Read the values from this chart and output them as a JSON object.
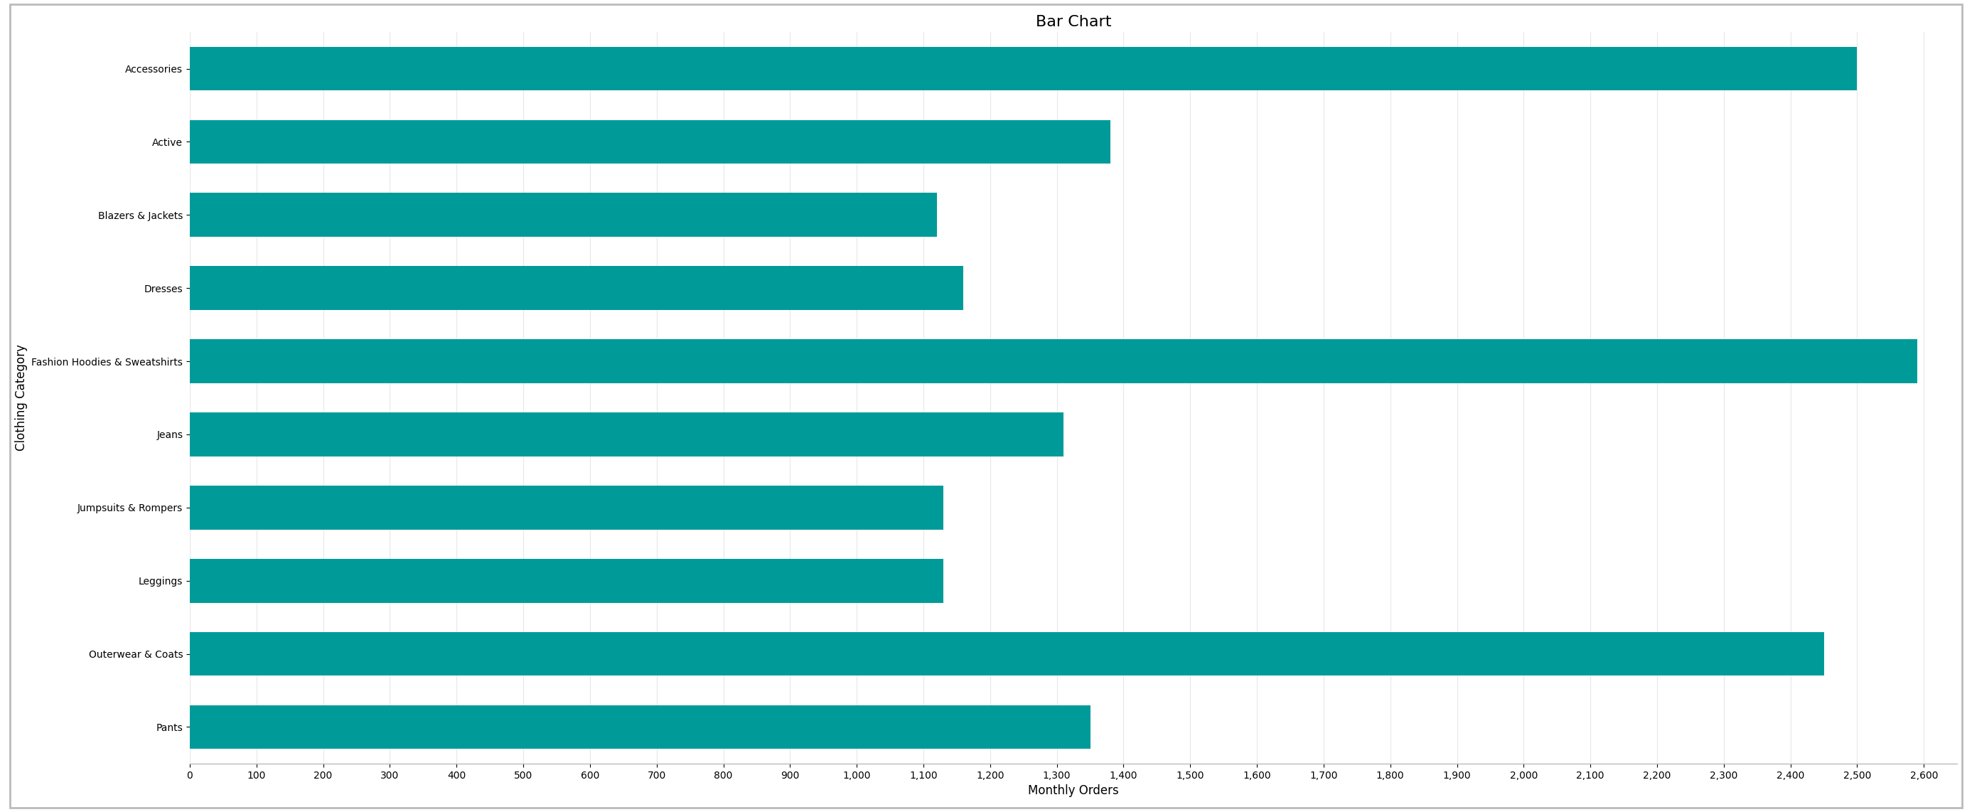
{
  "title": "Bar Chart",
  "xlabel": "Monthly Orders",
  "ylabel": "Clothing Category",
  "categories": [
    "Accessories",
    "Active",
    "Blazers & Jackets",
    "Dresses",
    "Fashion Hoodies & Sweatshirts",
    "Jeans",
    "Jumpsuits & Rompers",
    "Leggings",
    "Outerwear & Coats",
    "Pants"
  ],
  "values": [
    2500,
    1380,
    1120,
    1160,
    2590,
    1310,
    1130,
    1130,
    2450,
    1350
  ],
  "bar_color": "#009B99",
  "background_color": "#ffffff",
  "border_color": "#bbbbbb",
  "xlim": [
    0,
    2650
  ],
  "xticks": [
    0,
    100,
    200,
    300,
    400,
    500,
    600,
    700,
    800,
    900,
    1000,
    1100,
    1200,
    1300,
    1400,
    1500,
    1600,
    1700,
    1800,
    1900,
    2000,
    2100,
    2200,
    2300,
    2400,
    2500,
    2600
  ],
  "grid_color": "#e8e8e8",
  "title_fontsize": 16,
  "axis_label_fontsize": 12,
  "tick_fontsize": 10,
  "bar_height": 0.6
}
